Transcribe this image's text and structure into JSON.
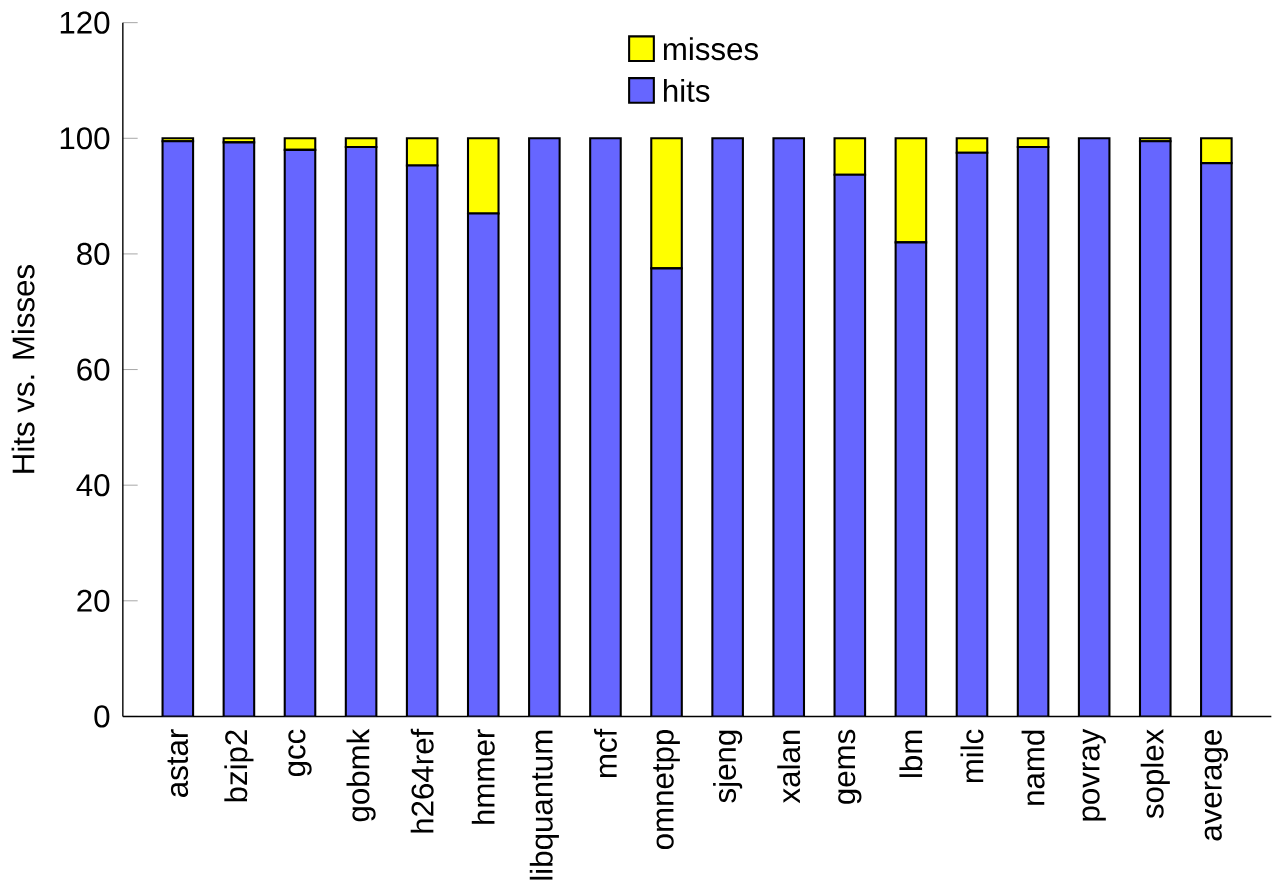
{
  "chart_data": {
    "type": "bar",
    "stacked": true,
    "ylabel": "Hits vs. Misses",
    "categories": [
      "astar",
      "bzip2",
      "gcc",
      "gobmk",
      "h264ref",
      "hmmer",
      "libquantum",
      "mcf",
      "omnetpp",
      "sjeng",
      "xalan",
      "gems",
      "lbm",
      "milc",
      "namd",
      "povray",
      "soplex",
      "average"
    ],
    "series": [
      {
        "name": "hits",
        "color": "#6666ff",
        "values": [
          99.5,
          99.3,
          98,
          98.5,
          95.3,
          87,
          100,
          100,
          77.5,
          100,
          100,
          93.7,
          82,
          97.5,
          98.5,
          100,
          99.5,
          95.7
        ]
      },
      {
        "name": "misses",
        "color": "#ffff00",
        "values": [
          0.5,
          0.7,
          2,
          1.5,
          4.7,
          13,
          0,
          0,
          22.5,
          0,
          0,
          6.3,
          18,
          2.5,
          1.5,
          0,
          0.5,
          4.3
        ]
      }
    ],
    "ylim": [
      0,
      120
    ],
    "yticks": [
      0,
      20,
      40,
      60,
      80,
      100,
      120
    ],
    "legend": "top"
  }
}
